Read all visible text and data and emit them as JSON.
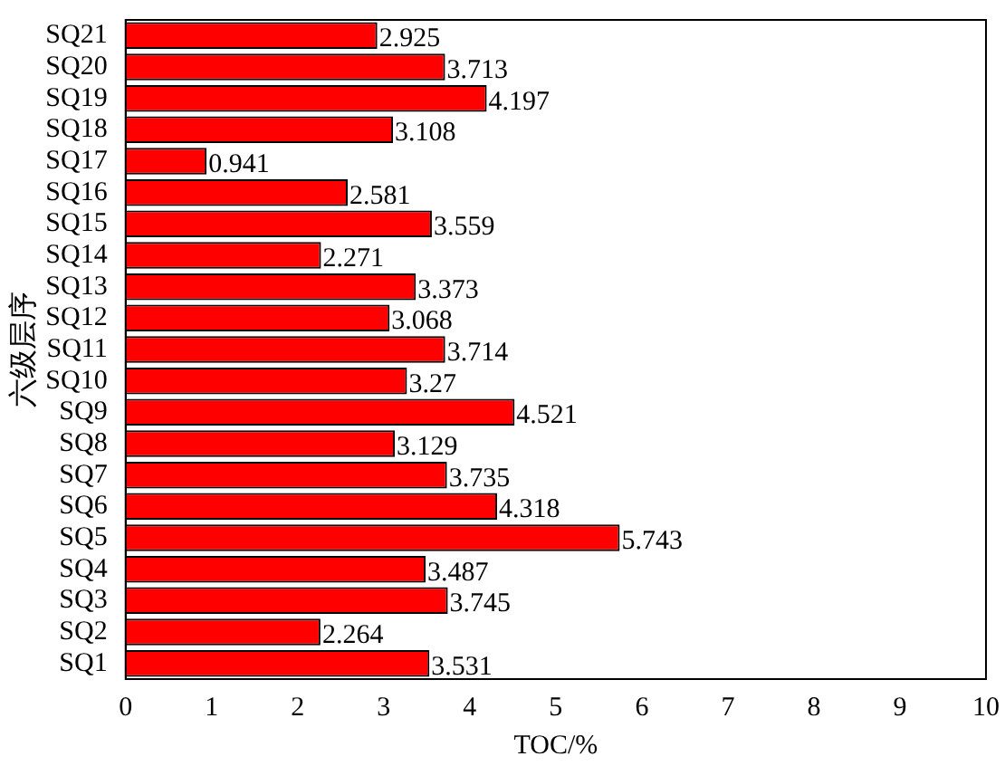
{
  "chart_data": {
    "type": "bar",
    "orientation": "horizontal",
    "xlabel": "TOC/%",
    "ylabel": "六级层序",
    "categories": [
      "SQ21",
      "SQ20",
      "SQ19",
      "SQ18",
      "SQ17",
      "SQ16",
      "SQ15",
      "SQ14",
      "SQ13",
      "SQ12",
      "SQ11",
      "SQ10",
      "SQ9",
      "SQ8",
      "SQ7",
      "SQ6",
      "SQ5",
      "SQ4",
      "SQ3",
      "SQ2",
      "SQ1"
    ],
    "values": [
      2.925,
      3.713,
      4.197,
      3.108,
      0.941,
      2.581,
      3.559,
      2.271,
      3.373,
      3.068,
      3.714,
      3.27,
      4.521,
      3.129,
      3.735,
      4.318,
      5.743,
      3.487,
      3.745,
      2.264,
      3.531
    ],
    "color": "#ff0000",
    "xlim": [
      0,
      10
    ],
    "xticks": [
      0,
      1,
      2,
      3,
      4,
      5,
      6,
      7,
      8,
      9,
      10
    ],
    "data_labels": true,
    "grid": false,
    "legend": false
  }
}
